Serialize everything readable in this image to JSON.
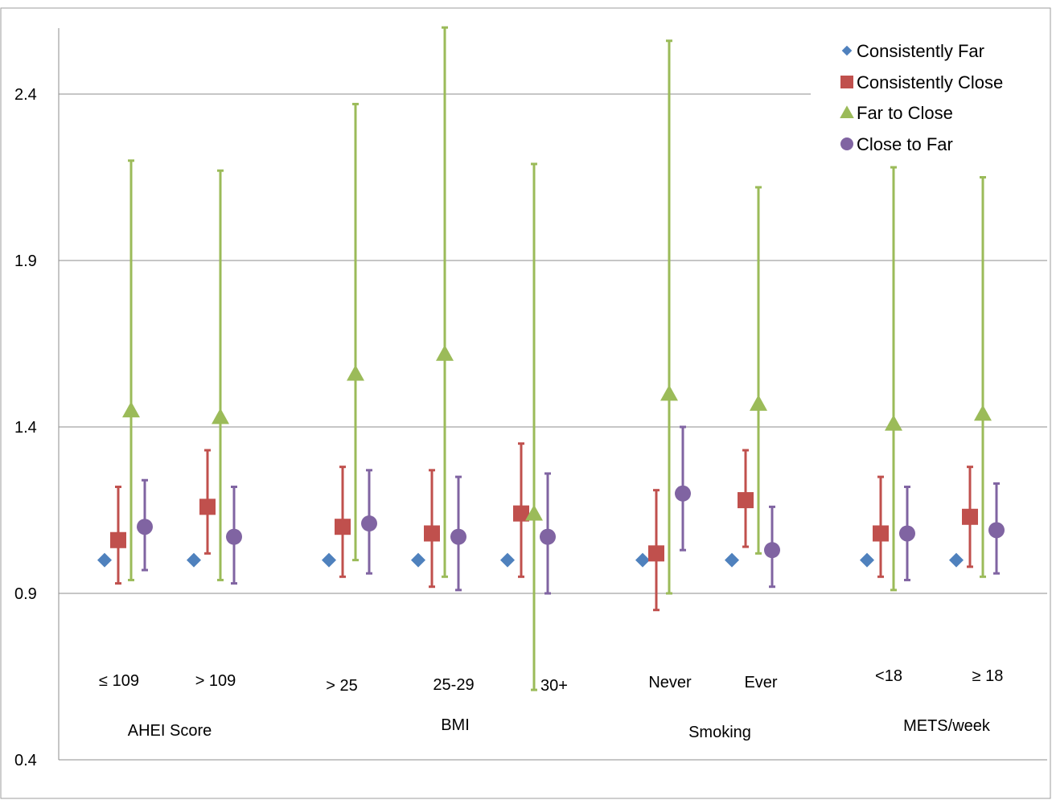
{
  "chart_data": {
    "type": "scatter",
    "title": "",
    "xlabel": "",
    "ylabel": "",
    "ylim": [
      0.4,
      2.6
    ],
    "y_ticks": [
      "0.4",
      "0.9",
      "1.4",
      "1.9",
      "2.4"
    ],
    "y_tick_values": [
      0.4,
      0.9,
      1.4,
      1.9,
      2.4
    ],
    "grid": true,
    "legend_position": "top-right",
    "categories": [
      "≤ 109",
      "> 109",
      "> 25",
      "25-29",
      "30+",
      "Never",
      "Ever",
      "<18",
      "≥ 18"
    ],
    "groups": [
      {
        "label": "AHEI Score",
        "categories": [
          "≤ 109",
          "> 109"
        ]
      },
      {
        "label": "BMI",
        "categories": [
          "> 25",
          "25-29",
          "30+"
        ]
      },
      {
        "label": "Smoking",
        "categories": [
          "Never",
          "Ever"
        ]
      },
      {
        "label": "METS/week",
        "categories": [
          "<18",
          "≥ 18"
        ]
      }
    ],
    "series": [
      {
        "name": "Consistently Far",
        "marker": "diamond",
        "color": "#4F81BD",
        "values": [
          1.0,
          1.0,
          1.0,
          1.0,
          1.0,
          1.0,
          1.0,
          1.0,
          1.0
        ]
      },
      {
        "name": "Consistently Close",
        "marker": "square",
        "color": "#C0504D",
        "values": [
          1.06,
          1.16,
          1.1,
          1.08,
          1.14,
          1.02,
          1.18,
          1.08,
          1.13
        ],
        "lower": [
          0.93,
          1.02,
          0.95,
          0.92,
          0.95,
          0.85,
          1.04,
          0.95,
          0.98
        ],
        "upper": [
          1.22,
          1.33,
          1.28,
          1.27,
          1.35,
          1.21,
          1.33,
          1.25,
          1.28
        ]
      },
      {
        "name": "Far to Close",
        "marker": "triangle",
        "color": "#9BBB59",
        "values": [
          1.45,
          1.43,
          1.56,
          1.62,
          1.14,
          1.5,
          1.47,
          1.41,
          1.44
        ],
        "lower": [
          0.94,
          0.94,
          1.0,
          0.95,
          0.61,
          0.9,
          1.02,
          0.91,
          0.95
        ],
        "upper": [
          2.2,
          2.17,
          2.37,
          2.6,
          2.19,
          2.56,
          2.12,
          2.18,
          2.15
        ]
      },
      {
        "name": "Close to Far",
        "marker": "circle",
        "color": "#8064A2",
        "values": [
          1.1,
          1.07,
          1.11,
          1.07,
          1.07,
          1.2,
          1.03,
          1.08,
          1.09
        ],
        "lower": [
          0.97,
          0.93,
          0.96,
          0.91,
          0.9,
          1.03,
          0.92,
          0.94,
          0.96
        ],
        "upper": [
          1.24,
          1.22,
          1.27,
          1.25,
          1.26,
          1.4,
          1.16,
          1.22,
          1.23
        ]
      }
    ]
  }
}
